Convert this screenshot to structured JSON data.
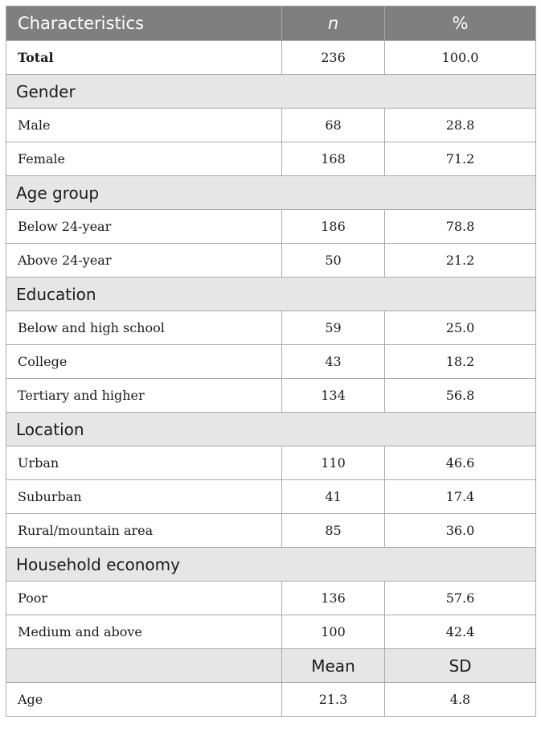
{
  "header": {
    "characteristics": "Characteristics",
    "n": "n",
    "percent": "%"
  },
  "total": {
    "label": "Total",
    "n": "236",
    "pct": "100.0"
  },
  "sections": [
    {
      "title": "Gender",
      "rows": [
        {
          "label": "Male",
          "n": "68",
          "pct": "28.8"
        },
        {
          "label": "Female",
          "n": "168",
          "pct": "71.2"
        }
      ]
    },
    {
      "title": "Age group",
      "rows": [
        {
          "label": "Below 24-year",
          "n": "186",
          "pct": "78.8"
        },
        {
          "label": "Above 24-year",
          "n": "50",
          "pct": "21.2"
        }
      ]
    },
    {
      "title": "Education",
      "rows": [
        {
          "label": "Below and high school",
          "n": "59",
          "pct": "25.0"
        },
        {
          "label": "College",
          "n": "43",
          "pct": "18.2"
        },
        {
          "label": "Tertiary and higher",
          "n": "134",
          "pct": "56.8"
        }
      ]
    },
    {
      "title": "Location",
      "rows": [
        {
          "label": "Urban",
          "n": "110",
          "pct": "46.6"
        },
        {
          "label": "Suburban",
          "n": "41",
          "pct": "17.4"
        },
        {
          "label": "Rural/mountain area",
          "n": "85",
          "pct": "36.0"
        }
      ]
    },
    {
      "title": "Household economy",
      "rows": [
        {
          "label": "Poor",
          "n": "136",
          "pct": "57.6"
        },
        {
          "label": "Medium and above",
          "n": "100",
          "pct": "42.4"
        }
      ]
    }
  ],
  "stats_header": {
    "mean": "Mean",
    "sd": "SD"
  },
  "age": {
    "label": "Age",
    "mean": "21.3",
    "sd": "4.8"
  }
}
